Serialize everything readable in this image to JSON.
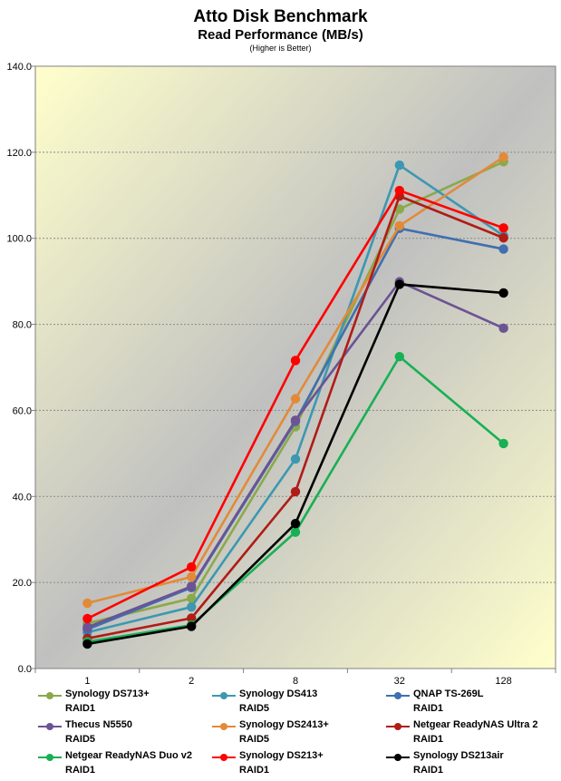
{
  "chart_data": {
    "type": "line",
    "title": "Atto Disk Benchmark",
    "subtitle": "Read Performance (MB/s)",
    "note": "(Higher is Better)",
    "categories": [
      "1",
      "2",
      "8",
      "32",
      "128"
    ],
    "ylim": [
      0,
      140
    ],
    "yticks": [
      "0.0",
      "20.0",
      "40.0",
      "60.0",
      "80.0",
      "100.0",
      "120.0",
      "140.0"
    ],
    "grid": true,
    "legend_position": "bottom",
    "series": [
      {
        "name": "Synology DS713+",
        "sub": "RAID1",
        "color": "#8BA94A",
        "values": [
          10.5,
          16.3,
          56.2,
          106.8,
          117.8
        ]
      },
      {
        "name": "Synology DS413",
        "sub": "RAID5",
        "color": "#3C98B1",
        "values": [
          8.4,
          14.3,
          48.7,
          117.0,
          100.6
        ]
      },
      {
        "name": "QNAP TS-269L",
        "sub": "RAID1",
        "color": "#3F6FB0",
        "values": [
          9.1,
          18.8,
          57.4,
          102.3,
          97.5
        ]
      },
      {
        "name": "Thecus N5550",
        "sub": "RAID5",
        "color": "#6C5393",
        "values": [
          9.6,
          19.1,
          57.7,
          89.9,
          79.1
        ]
      },
      {
        "name": "Synology DS2413+",
        "sub": "RAID5",
        "color": "#E38A38",
        "values": [
          15.2,
          21.3,
          62.7,
          102.9,
          118.9
        ]
      },
      {
        "name": "Netgear ReadyNAS Ultra 2",
        "sub": "RAID1",
        "color": "#B01C16",
        "values": [
          7.0,
          11.7,
          41.1,
          109.8,
          100.1
        ]
      },
      {
        "name": "Netgear ReadyNAS Duo v2",
        "sub": "RAID1",
        "color": "#18B054",
        "values": [
          6.2,
          10.1,
          31.7,
          72.5,
          52.3
        ]
      },
      {
        "name": "Synology DS213+",
        "sub": "RAID1",
        "color": "#FF0000",
        "values": [
          11.6,
          23.6,
          71.6,
          111.1,
          102.4
        ]
      },
      {
        "name": "Synology DS213air",
        "sub": "RAID1",
        "color": "#000000",
        "values": [
          5.7,
          9.8,
          33.7,
          89.3,
          87.3
        ]
      }
    ]
  }
}
